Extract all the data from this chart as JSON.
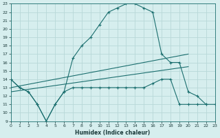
{
  "xlabel": "Humidex (Indice chaleur)",
  "bg_color": "#d6eeee",
  "grid_color": "#b8d8d8",
  "line_color": "#1a6e6e",
  "xlim": [
    0,
    23
  ],
  "ylim": [
    9,
    23
  ],
  "xticks": [
    0,
    1,
    2,
    3,
    4,
    5,
    6,
    7,
    8,
    9,
    10,
    11,
    12,
    13,
    14,
    15,
    16,
    17,
    18,
    19,
    20,
    21,
    22,
    23
  ],
  "yticks": [
    9,
    10,
    11,
    12,
    13,
    14,
    15,
    16,
    17,
    18,
    19,
    20,
    21,
    22,
    23
  ],
  "upper_x": [
    0,
    1,
    2,
    3,
    4,
    5,
    6,
    7,
    8,
    9,
    10,
    11,
    12,
    13,
    14,
    15,
    16,
    17,
    18,
    19,
    20,
    21,
    22
  ],
  "upper_y": [
    14,
    13,
    12.5,
    11,
    9,
    11,
    12.5,
    16.5,
    18,
    19,
    20.5,
    22,
    22.5,
    23,
    23,
    22.5,
    22,
    17,
    16,
    16,
    12.5,
    12,
    11
  ],
  "lower_x": [
    0,
    1,
    2,
    3,
    4,
    5,
    6,
    7,
    8,
    9,
    10,
    11,
    12,
    13,
    14,
    15,
    16,
    17,
    18,
    19,
    20,
    21,
    22,
    23
  ],
  "lower_y": [
    14,
    13,
    12.5,
    11,
    9,
    11,
    12.5,
    13,
    13,
    13,
    13,
    13,
    13,
    13,
    13,
    13,
    13.5,
    14,
    14,
    11,
    11,
    11,
    11,
    11
  ],
  "line1_x": [
    0,
    20
  ],
  "line1_y": [
    13.0,
    17.0
  ],
  "line2_x": [
    0,
    20
  ],
  "line2_y": [
    12.5,
    15.5
  ]
}
